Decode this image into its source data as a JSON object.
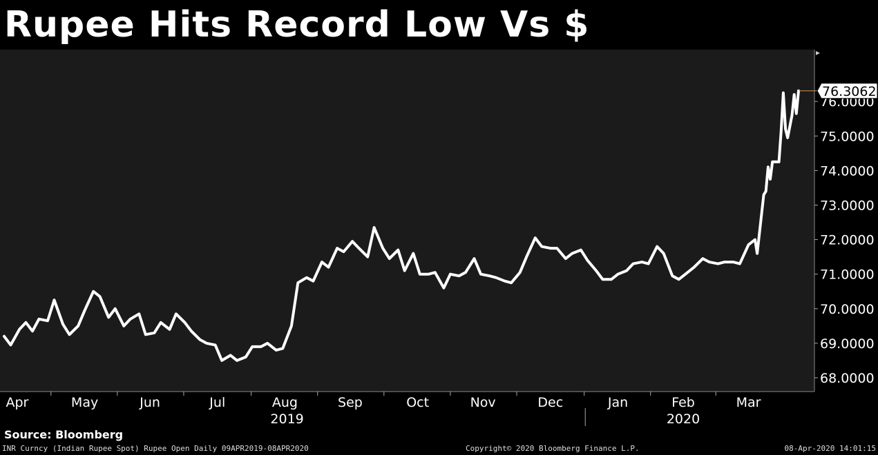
{
  "title": "Rupee Hits Record Low Vs $",
  "source_text": "Source: Bloomberg",
  "footer": {
    "left": "INR Curncy (Indian Rupee Spot) Rupee Open  Daily 09APR2019-08APR2020",
    "center": "Copyright© 2020 Bloomberg Finance L.P.",
    "right": "08-Apr-2020 14:01:15"
  },
  "chart_data": {
    "type": "line",
    "series": [
      {
        "name": "INR Curncy",
        "color": "#ffffff"
      }
    ],
    "x_start": "2019-04-09",
    "x_end": "2020-04-08",
    "points": [
      [
        "2019-04-09",
        69.2
      ],
      [
        "2019-04-12",
        68.95
      ],
      [
        "2019-04-16",
        69.4
      ],
      [
        "2019-04-19",
        69.6
      ],
      [
        "2019-04-22",
        69.35
      ],
      [
        "2019-04-25",
        69.7
      ],
      [
        "2019-04-29",
        69.65
      ],
      [
        "2019-05-02",
        70.25
      ],
      [
        "2019-05-06",
        69.55
      ],
      [
        "2019-05-09",
        69.25
      ],
      [
        "2019-05-13",
        69.5
      ],
      [
        "2019-05-16",
        69.95
      ],
      [
        "2019-05-20",
        70.5
      ],
      [
        "2019-05-23",
        70.35
      ],
      [
        "2019-05-27",
        69.75
      ],
      [
        "2019-05-30",
        70.0
      ],
      [
        "2019-06-03",
        69.5
      ],
      [
        "2019-06-06",
        69.7
      ],
      [
        "2019-06-10",
        69.85
      ],
      [
        "2019-06-13",
        69.25
      ],
      [
        "2019-06-17",
        69.3
      ],
      [
        "2019-06-20",
        69.6
      ],
      [
        "2019-06-24",
        69.4
      ],
      [
        "2019-06-27",
        69.85
      ],
      [
        "2019-07-01",
        69.6
      ],
      [
        "2019-07-04",
        69.35
      ],
      [
        "2019-07-08",
        69.1
      ],
      [
        "2019-07-11",
        69.0
      ],
      [
        "2019-07-15",
        68.95
      ],
      [
        "2019-07-18",
        68.5
      ],
      [
        "2019-07-22",
        68.65
      ],
      [
        "2019-07-25",
        68.5
      ],
      [
        "2019-07-29",
        68.6
      ],
      [
        "2019-08-01",
        68.9
      ],
      [
        "2019-08-05",
        68.9
      ],
      [
        "2019-08-08",
        69.0
      ],
      [
        "2019-08-12",
        68.8
      ],
      [
        "2019-08-15",
        68.85
      ],
      [
        "2019-08-19",
        69.5
      ],
      [
        "2019-08-22",
        70.75
      ],
      [
        "2019-08-26",
        70.9
      ],
      [
        "2019-08-29",
        70.8
      ],
      [
        "2019-09-02",
        71.35
      ],
      [
        "2019-09-05",
        71.2
      ],
      [
        "2019-09-09",
        71.75
      ],
      [
        "2019-09-12",
        71.65
      ],
      [
        "2019-09-16",
        71.95
      ],
      [
        "2019-09-19",
        71.75
      ],
      [
        "2019-09-23",
        71.5
      ],
      [
        "2019-09-26",
        72.35
      ],
      [
        "2019-09-30",
        71.75
      ],
      [
        "2019-10-03",
        71.45
      ],
      [
        "2019-10-07",
        71.7
      ],
      [
        "2019-10-10",
        71.1
      ],
      [
        "2019-10-14",
        71.6
      ],
      [
        "2019-10-17",
        71.0
      ],
      [
        "2019-10-21",
        71.0
      ],
      [
        "2019-10-24",
        71.05
      ],
      [
        "2019-10-28",
        70.6
      ],
      [
        "2019-10-31",
        71.0
      ],
      [
        "2019-11-04",
        70.95
      ],
      [
        "2019-11-07",
        71.05
      ],
      [
        "2019-11-11",
        71.45
      ],
      [
        "2019-11-14",
        71.0
      ],
      [
        "2019-11-18",
        70.95
      ],
      [
        "2019-11-21",
        70.9
      ],
      [
        "2019-11-25",
        70.8
      ],
      [
        "2019-11-28",
        70.75
      ],
      [
        "2019-12-02",
        71.05
      ],
      [
        "2019-12-05",
        71.5
      ],
      [
        "2019-12-09",
        72.05
      ],
      [
        "2019-12-12",
        71.8
      ],
      [
        "2019-12-16",
        71.75
      ],
      [
        "2019-12-19",
        71.75
      ],
      [
        "2019-12-23",
        71.45
      ],
      [
        "2019-12-26",
        71.6
      ],
      [
        "2019-12-30",
        71.7
      ],
      [
        "2020-01-02",
        71.4
      ],
      [
        "2020-01-06",
        71.1
      ],
      [
        "2020-01-09",
        70.85
      ],
      [
        "2020-01-13",
        70.85
      ],
      [
        "2020-01-16",
        71.0
      ],
      [
        "2020-01-20",
        71.1
      ],
      [
        "2020-01-23",
        71.3
      ],
      [
        "2020-01-27",
        71.35
      ],
      [
        "2020-01-30",
        71.3
      ],
      [
        "2020-02-03",
        71.8
      ],
      [
        "2020-02-06",
        71.6
      ],
      [
        "2020-02-10",
        70.95
      ],
      [
        "2020-02-13",
        70.85
      ],
      [
        "2020-02-17",
        71.05
      ],
      [
        "2020-02-20",
        71.2
      ],
      [
        "2020-02-24",
        71.45
      ],
      [
        "2020-02-27",
        71.35
      ],
      [
        "2020-03-02",
        71.3
      ],
      [
        "2020-03-05",
        71.35
      ],
      [
        "2020-03-09",
        71.35
      ],
      [
        "2020-03-12",
        71.3
      ],
      [
        "2020-03-16",
        71.85
      ],
      [
        "2020-03-19",
        72.0
      ],
      [
        "2020-03-20",
        71.6
      ],
      [
        "2020-03-23",
        73.3
      ],
      [
        "2020-03-24",
        73.4
      ],
      [
        "2020-03-25",
        74.1
      ],
      [
        "2020-03-26",
        73.75
      ],
      [
        "2020-03-27",
        74.25
      ],
      [
        "2020-03-30",
        74.25
      ],
      [
        "2020-03-31",
        75.15
      ],
      [
        "2020-04-01",
        76.25
      ],
      [
        "2020-04-02",
        75.2
      ],
      [
        "2020-04-03",
        74.95
      ],
      [
        "2020-04-05",
        75.6
      ],
      [
        "2020-04-06",
        76.2
      ],
      [
        "2020-04-07",
        75.65
      ],
      [
        "2020-04-08",
        76.3062
      ]
    ],
    "last_value_label": "76.3062",
    "last_value_color": "#e8913a",
    "xaxis": {
      "months": [
        {
          "label": "Apr",
          "date": "2019-04-15"
        },
        {
          "label": "May",
          "date": "2019-05-16"
        },
        {
          "label": "Jun",
          "date": "2019-06-15"
        },
        {
          "label": "Jul",
          "date": "2019-07-16"
        },
        {
          "label": "Aug",
          "date": "2019-08-16"
        },
        {
          "label": "Sep",
          "date": "2019-09-15"
        },
        {
          "label": "Oct",
          "date": "2019-10-16"
        },
        {
          "label": "Nov",
          "date": "2019-11-15"
        },
        {
          "label": "Dec",
          "date": "2019-12-16"
        },
        {
          "label": "Jan",
          "date": "2020-01-16"
        },
        {
          "label": "Feb",
          "date": "2020-02-15"
        },
        {
          "label": "Mar",
          "date": "2020-03-16"
        }
      ],
      "years": [
        {
          "label": "2019",
          "date": "2019-08-17"
        },
        {
          "label": "2020",
          "date": "2020-02-15"
        }
      ],
      "year_divider": "2020-01-01"
    },
    "yaxis": {
      "ylim": [
        67.6,
        77.5
      ],
      "ticks": [
        {
          "label": "68.0000",
          "value": 68
        },
        {
          "label": "69.0000",
          "value": 69
        },
        {
          "label": "70.0000",
          "value": 70
        },
        {
          "label": "71.0000",
          "value": 71
        },
        {
          "label": "72.0000",
          "value": 72
        },
        {
          "label": "73.0000",
          "value": 73
        },
        {
          "label": "74.0000",
          "value": 74
        },
        {
          "label": "75.0000",
          "value": 75
        },
        {
          "label": "76.0000",
          "value": 76
        }
      ]
    },
    "colors": {
      "plot_bg": "#1b1b1b",
      "axis_bg": "#000000",
      "text": "#ffffff"
    }
  }
}
